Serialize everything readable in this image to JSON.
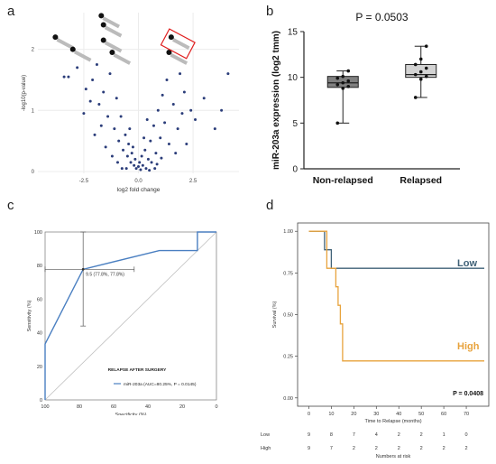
{
  "panels": {
    "a": {
      "letter": "a"
    },
    "b": {
      "letter": "b"
    },
    "c": {
      "letter": "c"
    },
    "d": {
      "letter": "d"
    }
  },
  "chart_data": [
    {
      "panel": "a",
      "type": "scatter",
      "title": "",
      "xlabel": "log2 fold change",
      "ylabel": "-log10(p-value)",
      "xlim": [
        -4.6,
        4.6
      ],
      "ylim": [
        -0.03,
        2.6
      ],
      "xticks": [
        -2.5,
        0.0,
        2.5
      ],
      "xtick_labels": [
        "-2.5",
        "0.0",
        "2.5"
      ],
      "yticks": [
        0,
        1,
        2
      ],
      "ytick_labels": [
        "0",
        "1",
        "2"
      ],
      "grid": true,
      "highlighted_points": [
        {
          "x": -3.8,
          "y": 2.2
        },
        {
          "x": -3.0,
          "y": 2.0
        },
        {
          "x": -1.7,
          "y": 2.55
        },
        {
          "x": -1.6,
          "y": 2.4
        },
        {
          "x": -1.6,
          "y": 2.15
        },
        {
          "x": -1.2,
          "y": 1.95
        },
        {
          "x": 1.5,
          "y": 2.2
        },
        {
          "x": 1.4,
          "y": 1.95
        }
      ],
      "boxed_point": {
        "x": 1.5,
        "y": 2.2
      },
      "points": [
        {
          "x": -3.4,
          "y": 1.55
        },
        {
          "x": -3.2,
          "y": 1.55
        },
        {
          "x": -2.8,
          "y": 1.7
        },
        {
          "x": -2.4,
          "y": 1.35
        },
        {
          "x": -2.1,
          "y": 1.5
        },
        {
          "x": -1.9,
          "y": 1.75
        },
        {
          "x": -1.8,
          "y": 1.1
        },
        {
          "x": -1.6,
          "y": 1.3
        },
        {
          "x": -1.4,
          "y": 0.9
        },
        {
          "x": -1.3,
          "y": 1.6
        },
        {
          "x": -1.1,
          "y": 0.7
        },
        {
          "x": -1.0,
          "y": 1.2
        },
        {
          "x": -0.9,
          "y": 0.5
        },
        {
          "x": -0.8,
          "y": 0.9
        },
        {
          "x": -0.7,
          "y": 0.35
        },
        {
          "x": -0.6,
          "y": 0.6
        },
        {
          "x": -0.5,
          "y": 0.25
        },
        {
          "x": -0.45,
          "y": 0.45
        },
        {
          "x": -0.35,
          "y": 0.15
        },
        {
          "x": -0.3,
          "y": 0.3
        },
        {
          "x": -0.2,
          "y": 0.1
        },
        {
          "x": -0.15,
          "y": 0.2
        },
        {
          "x": -0.1,
          "y": 0.05
        },
        {
          "x": 0.0,
          "y": 0.08
        },
        {
          "x": 0.05,
          "y": 0.15
        },
        {
          "x": 0.1,
          "y": 0.03
        },
        {
          "x": 0.15,
          "y": 0.25
        },
        {
          "x": 0.2,
          "y": 0.1
        },
        {
          "x": 0.3,
          "y": 0.35
        },
        {
          "x": 0.35,
          "y": 0.05
        },
        {
          "x": 0.45,
          "y": 0.2
        },
        {
          "x": 0.55,
          "y": 0.5
        },
        {
          "x": 0.6,
          "y": 0.15
        },
        {
          "x": 0.7,
          "y": 0.75
        },
        {
          "x": 0.8,
          "y": 0.3
        },
        {
          "x": 0.9,
          "y": 1.0
        },
        {
          "x": 1.0,
          "y": 0.55
        },
        {
          "x": 1.1,
          "y": 1.25
        },
        {
          "x": 1.2,
          "y": 0.8
        },
        {
          "x": 1.3,
          "y": 1.5
        },
        {
          "x": 1.6,
          "y": 1.1
        },
        {
          "x": 1.9,
          "y": 1.6
        },
        {
          "x": 2.1,
          "y": 1.3
        },
        {
          "x": 2.4,
          "y": 1.0
        },
        {
          "x": 2.6,
          "y": 0.85
        },
        {
          "x": 3.0,
          "y": 1.2
        },
        {
          "x": 3.5,
          "y": 0.7
        },
        {
          "x": 3.8,
          "y": 1.0
        },
        {
          "x": 4.1,
          "y": 1.6
        },
        {
          "x": -2.5,
          "y": 0.95
        },
        {
          "x": -2.0,
          "y": 0.6
        },
        {
          "x": -1.5,
          "y": 0.4
        },
        {
          "x": -1.2,
          "y": 0.25
        },
        {
          "x": -0.95,
          "y": 0.15
        },
        {
          "x": 0.85,
          "y": 0.12
        },
        {
          "x": 1.05,
          "y": 0.22
        },
        {
          "x": 1.4,
          "y": 0.45
        },
        {
          "x": 1.8,
          "y": 0.7
        },
        {
          "x": 2.2,
          "y": 0.45
        },
        {
          "x": -0.55,
          "y": 0.05
        },
        {
          "x": 0.5,
          "y": 0.02
        },
        {
          "x": -0.25,
          "y": 0.4
        },
        {
          "x": 0.25,
          "y": 0.55
        },
        {
          "x": -0.75,
          "y": 0.05
        },
        {
          "x": 0.75,
          "y": 0.05
        },
        {
          "x": -1.7,
          "y": 0.75
        },
        {
          "x": 1.7,
          "y": 0.3
        },
        {
          "x": -2.2,
          "y": 1.15
        },
        {
          "x": 2.0,
          "y": 0.95
        },
        {
          "x": -0.4,
          "y": 0.7
        },
        {
          "x": 0.4,
          "y": 0.85
        }
      ]
    },
    {
      "panel": "b",
      "type": "box",
      "title": "P = 0.0503",
      "ylabel": "miR-203a expression (log2 tmm)",
      "ylim": [
        0,
        15
      ],
      "yticks": [
        0,
        5,
        10,
        15
      ],
      "ytick_labels": [
        "0",
        "5",
        "10",
        "15"
      ],
      "categories": [
        "Non-relapsed",
        "Relapsed"
      ],
      "boxes": [
        {
          "name": "Non-relapsed",
          "min": 5.0,
          "q1": 8.9,
          "median": 9.4,
          "q3": 10.1,
          "max": 10.7,
          "color": "#808080",
          "points": [
            5.0,
            8.8,
            9.0,
            9.2,
            9.4,
            9.6,
            9.9,
            10.1,
            10.7
          ]
        },
        {
          "name": "Relapsed",
          "min": 7.8,
          "q1": 10.0,
          "median": 10.3,
          "q3": 11.4,
          "max": 13.4,
          "color": "#d3d3d3",
          "points": [
            7.8,
            9.8,
            10.1,
            10.3,
            10.6,
            11.0,
            11.4,
            12.0,
            13.4
          ]
        }
      ]
    },
    {
      "panel": "c",
      "type": "line",
      "title": "",
      "xlabel": "Specificity (%)",
      "ylabel": "Sensitivity (%)",
      "xlim": [
        100,
        0
      ],
      "ylim": [
        0,
        100
      ],
      "ticks": [
        0,
        20,
        40,
        60,
        80,
        100
      ],
      "tick_labels": [
        "0",
        "20",
        "40",
        "60",
        "80",
        "100"
      ],
      "legend_title": "RELAPSE AFTER SURGERY",
      "series": [
        {
          "name": "miR-203a (AUC=80.25%, P = 0.0145)",
          "color": "#4a7fc1",
          "points": [
            [
              100,
              0
            ],
            [
              100,
              33.3
            ],
            [
              77.8,
              77.8
            ],
            [
              33.3,
              88.9
            ],
            [
              11.1,
              88.9
            ],
            [
              11.1,
              100
            ],
            [
              0,
              100
            ]
          ]
        }
      ],
      "threshold_label": "9.5 (77.8%, 77.8%)",
      "threshold_point": [
        77.8,
        77.8
      ],
      "ci_specificity": [
        48,
        100
      ],
      "ci_sensitivity": [
        44,
        100
      ]
    },
    {
      "panel": "d",
      "type": "line",
      "title": "",
      "xlabel": "Time to Relapse (months)",
      "ylabel": "Survival (%)",
      "xlim": [
        -5,
        80
      ],
      "ylim": [
        -0.05,
        1.05
      ],
      "xticks": [
        0,
        10,
        20,
        30,
        40,
        50,
        60,
        70
      ],
      "yticks": [
        0,
        0.25,
        0.5,
        0.75,
        1.0
      ],
      "ytick_labels": [
        "0.00",
        "0.25",
        "0.50",
        "0.75",
        "1.00"
      ],
      "pvalue_label": "P = 0.0408",
      "series": [
        {
          "name": "Low",
          "color": "#3f6177",
          "points": [
            [
              0,
              1.0
            ],
            [
              7,
              1.0
            ],
            [
              7,
              0.889
            ],
            [
              10,
              0.889
            ],
            [
              10,
              0.778
            ],
            [
              78,
              0.778
            ]
          ]
        },
        {
          "name": "High",
          "color": "#e8a33d",
          "points": [
            [
              0,
              1.0
            ],
            [
              8,
              1.0
            ],
            [
              8,
              0.778
            ],
            [
              12,
              0.778
            ],
            [
              12,
              0.667
            ],
            [
              13,
              0.667
            ],
            [
              13,
              0.556
            ],
            [
              14,
              0.556
            ],
            [
              14,
              0.444
            ],
            [
              15,
              0.444
            ],
            [
              15,
              0.222
            ],
            [
              78,
              0.222
            ]
          ]
        }
      ],
      "risk_table": {
        "caption": "Numbers at risk",
        "times": [
          0,
          10,
          20,
          30,
          40,
          50,
          60,
          70
        ],
        "rows": [
          {
            "name": "Low",
            "values": [
              "9",
              "8",
              "7",
              "4",
              "2",
              "2",
              "1",
              "0"
            ]
          },
          {
            "name": "High",
            "values": [
              "9",
              "7",
              "2",
              "2",
              "2",
              "2",
              "2",
              "2"
            ]
          }
        ]
      }
    }
  ]
}
